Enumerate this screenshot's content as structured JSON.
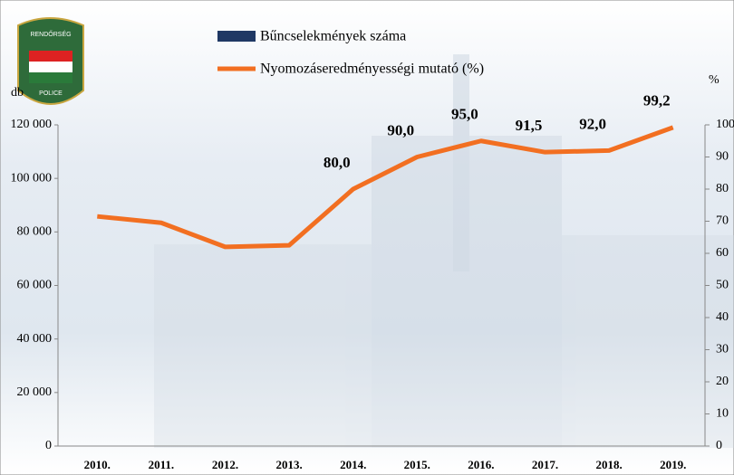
{
  "logo": {
    "top": "RENDŐRSÉG",
    "bottom": "POLICE"
  },
  "chart_data": {
    "type": "bar+line",
    "y_label": "db",
    "y2_label": "%",
    "categories": [
      "2010.",
      "2011.",
      "2012.",
      "2013.",
      "2014.",
      "2015.",
      "2016.",
      "2017.",
      "2018.",
      "2019."
    ],
    "series": [
      {
        "name": "Bűncselekmények száma",
        "type": "bar",
        "color": "#1f3864",
        "values": [
          null,
          null,
          null,
          null,
          null,
          null,
          null,
          null,
          null,
          null
        ]
      },
      {
        "name": "Nyomozáseredményességi mutató (%)",
        "type": "line",
        "axis": "y2",
        "color": "#f26f21",
        "values": [
          71.5,
          69.5,
          62,
          62.5,
          80.0,
          90.0,
          95.0,
          91.5,
          92.0,
          99.2
        ],
        "value_labels": [
          null,
          null,
          null,
          null,
          "80,0",
          "90,0",
          "95,0",
          "91,5",
          "92,0",
          "99,2"
        ]
      }
    ],
    "ylim": [
      0,
      120000
    ],
    "yticks": [
      0,
      {
        "value": 20000,
        "label": "20 000"
      },
      {
        "value": 40000,
        "label": "40 000"
      },
      {
        "value": 60000,
        "label": "60 000"
      },
      {
        "value": 80000,
        "label": "80 000"
      },
      {
        "value": 100000,
        "label": "100 000"
      },
      {
        "value": 120000,
        "label": "120 000"
      }
    ],
    "y2lim": [
      0,
      100
    ],
    "y2ticks": [
      0,
      10,
      20,
      30,
      40,
      50,
      60,
      70,
      80,
      90,
      100
    ]
  }
}
